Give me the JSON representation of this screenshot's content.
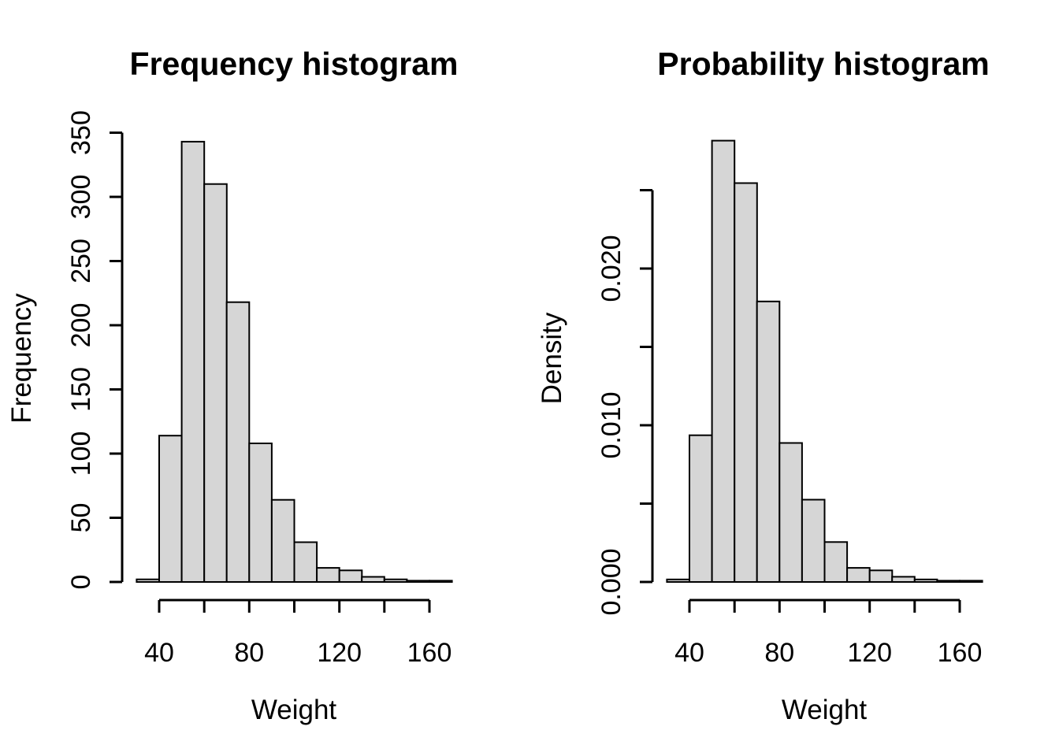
{
  "colors": {
    "background": "#FFFFFF",
    "text": "#000000",
    "axis": "#000000",
    "bar_fill": "#D6D6D6",
    "bar_stroke": "#000000"
  },
  "chart_data": [
    {
      "type": "bar",
      "subtype": "histogram",
      "title": "Frequency histogram",
      "xlabel": "Weight",
      "ylabel": "Frequency",
      "bin_edges": [
        30,
        40,
        50,
        60,
        70,
        80,
        90,
        100,
        110,
        120,
        130,
        140,
        150,
        160,
        170
      ],
      "values": [
        2,
        114,
        343,
        310,
        218,
        108,
        64,
        31,
        11,
        9,
        4,
        2,
        1,
        1
      ],
      "x_ticks": [
        40,
        60,
        80,
        100,
        120,
        140,
        160
      ],
      "x_tick_labels": [
        "40",
        "",
        "80",
        "",
        "120",
        "",
        "160"
      ],
      "y_ticks": [
        0,
        50,
        100,
        150,
        200,
        250,
        300,
        350
      ],
      "y_tick_labels": [
        "0",
        "50",
        "100",
        "150",
        "200",
        "250",
        "300",
        "350"
      ],
      "xlim": [
        30,
        170
      ],
      "ylim": [
        0,
        350
      ],
      "grid": false,
      "legend": "none",
      "bar_fill": "#D6D6D6",
      "bar_stroke": "#000000"
    },
    {
      "type": "bar",
      "subtype": "histogram",
      "title": "Probability histogram",
      "xlabel": "Weight",
      "ylabel": "Density",
      "bin_edges": [
        30,
        40,
        50,
        60,
        70,
        80,
        90,
        100,
        110,
        120,
        130,
        140,
        150,
        160,
        170
      ],
      "values": [
        0.00016,
        0.00936,
        0.02816,
        0.02545,
        0.0179,
        0.00887,
        0.00525,
        0.00255,
        0.0009,
        0.00074,
        0.00033,
        0.00016,
        8e-05,
        8e-05
      ],
      "x_ticks": [
        40,
        60,
        80,
        100,
        120,
        140,
        160
      ],
      "x_tick_labels": [
        "40",
        "",
        "80",
        "",
        "120",
        "",
        "160"
      ],
      "y_ticks": [
        0,
        0.005,
        0.01,
        0.015,
        0.02,
        0.025
      ],
      "y_tick_labels": [
        "0.000",
        "",
        "0.010",
        "",
        "0.020",
        ""
      ],
      "xlim": [
        30,
        170
      ],
      "ylim": [
        0,
        0.025
      ],
      "grid": false,
      "legend": "none",
      "bar_fill": "#D6D6D6",
      "bar_stroke": "#000000"
    }
  ]
}
